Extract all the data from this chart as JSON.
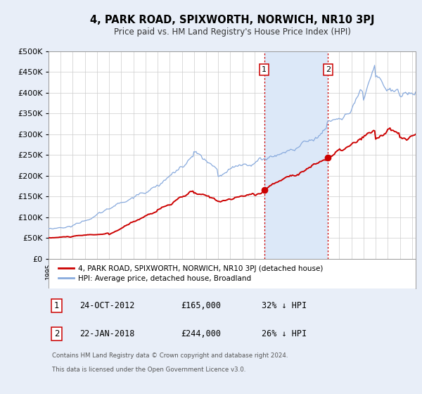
{
  "title": "4, PARK ROAD, SPIXWORTH, NORWICH, NR10 3PJ",
  "subtitle": "Price paid vs. HM Land Registry's House Price Index (HPI)",
  "background_color": "#e8eef8",
  "plot_bg_color": "#ffffff",
  "ylim": [
    0,
    500000
  ],
  "yticks": [
    0,
    50000,
    100000,
    150000,
    200000,
    250000,
    300000,
    350000,
    400000,
    450000,
    500000
  ],
  "xlim_start": 1995.0,
  "xlim_end": 2025.3,
  "sale1_x": 2012.81,
  "sale1_y": 165000,
  "sale1_label": "1",
  "sale1_date": "24-OCT-2012",
  "sale1_price": "£165,000",
  "sale1_hpi": "32% ↓ HPI",
  "sale2_x": 2018.06,
  "sale2_y": 244000,
  "sale2_label": "2",
  "sale2_date": "22-JAN-2018",
  "sale2_price": "£244,000",
  "sale2_hpi": "26% ↓ HPI",
  "legend_label_red": "4, PARK ROAD, SPIXWORTH, NORWICH, NR10 3PJ (detached house)",
  "legend_label_blue": "HPI: Average price, detached house, Broadland",
  "footer_line1": "Contains HM Land Registry data © Crown copyright and database right 2024.",
  "footer_line2": "This data is licensed under the Open Government Licence v3.0.",
  "red_color": "#cc0000",
  "blue_color": "#88aadd",
  "marker_color": "#cc0000",
  "shade_color": "#dce8f8"
}
